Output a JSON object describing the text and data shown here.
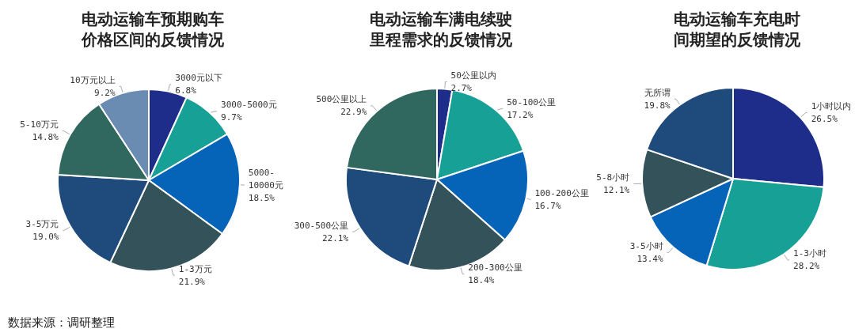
{
  "chart_data": [
    {
      "type": "pie",
      "title": "电动运输车预期购车价格区间的反馈情况",
      "categories": [
        "3000元以下",
        "3000-5000元",
        "5000-10000元",
        "1-3万元",
        "3-5万元",
        "5-10万元",
        "10万元以上"
      ],
      "values": [
        6.8,
        9.7,
        18.5,
        21.9,
        19.0,
        14.8,
        9.2
      ],
      "value_labels": [
        "6.8%",
        "9.7%",
        "18.5%",
        "21.9%",
        "19.0%",
        "14.8%",
        "9.2%"
      ],
      "colors": [
        "#1f2d8a",
        "#17a096",
        "#0563b8",
        "#33525a",
        "#1e4a7c",
        "#30675f",
        "#6a8bb2"
      ],
      "annotations": [
        "数据来源：调研整理"
      ]
    },
    {
      "type": "pie",
      "title": "电动运输车满电续驶里程需求的反馈情况",
      "categories": [
        "50公里以内",
        "50-100公里",
        "100-200公里",
        "200-300公里",
        "300-500公里",
        "500公里以上"
      ],
      "values": [
        2.7,
        17.2,
        16.7,
        18.4,
        22.1,
        22.9
      ],
      "value_labels": [
        "2.7%",
        "17.2%",
        "16.7%",
        "18.4%",
        "22.1%",
        "22.9%"
      ],
      "colors": [
        "#1f2d8a",
        "#17a096",
        "#0563b8",
        "#33525a",
        "#1e4a7c",
        "#30675f"
      ]
    },
    {
      "type": "pie",
      "title": "电动运输车充电时间期望的反馈情况",
      "categories": [
        "1小时以内",
        "1-3小时",
        "3-5小时",
        "5-8小时",
        "无所谓"
      ],
      "values": [
        26.5,
        28.2,
        13.4,
        12.1,
        19.8
      ],
      "value_labels": [
        "26.5%",
        "28.2%",
        "13.4%",
        "12.1%",
        "19.8%"
      ],
      "colors": [
        "#1f2d8a",
        "#17a096",
        "#0563b8",
        "#33525a",
        "#1e4a7c"
      ]
    }
  ]
}
